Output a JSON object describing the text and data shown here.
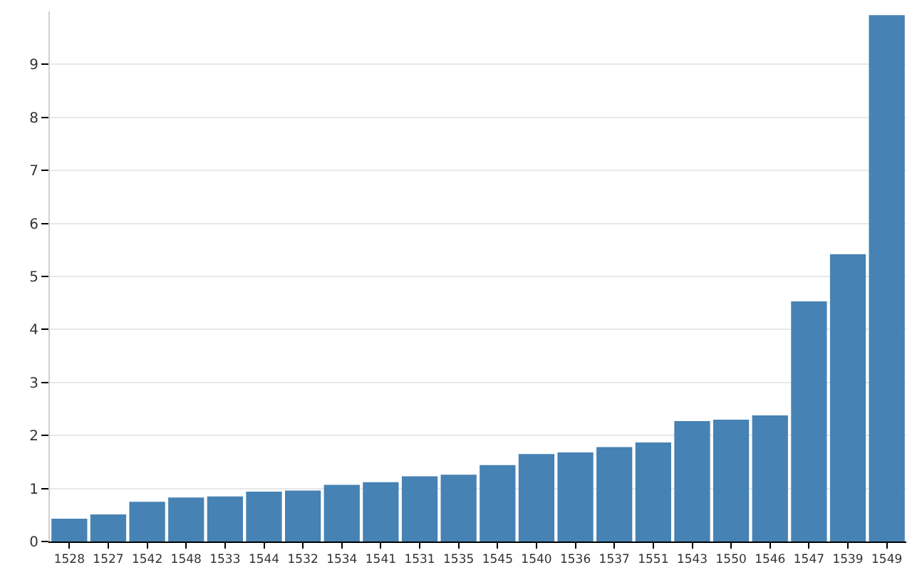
{
  "chart_data": {
    "type": "bar",
    "categories": [
      "1528",
      "1527",
      "1542",
      "1548",
      "1533",
      "1544",
      "1532",
      "1534",
      "1541",
      "1531",
      "1535",
      "1545",
      "1540",
      "1536",
      "1537",
      "1551",
      "1543",
      "1550",
      "1546",
      "1547",
      "1539",
      "1549"
    ],
    "values": [
      0.43,
      0.51,
      0.75,
      0.83,
      0.85,
      0.94,
      0.96,
      1.07,
      1.12,
      1.23,
      1.26,
      1.44,
      1.65,
      1.68,
      1.78,
      1.87,
      2.27,
      2.3,
      2.38,
      4.53,
      5.42,
      9.93
    ],
    "color": "#4682b4",
    "ylim": [
      0,
      10
    ],
    "yticks": [
      0,
      1,
      2,
      3,
      4,
      5,
      6,
      7,
      8,
      9
    ],
    "grid": "y"
  }
}
